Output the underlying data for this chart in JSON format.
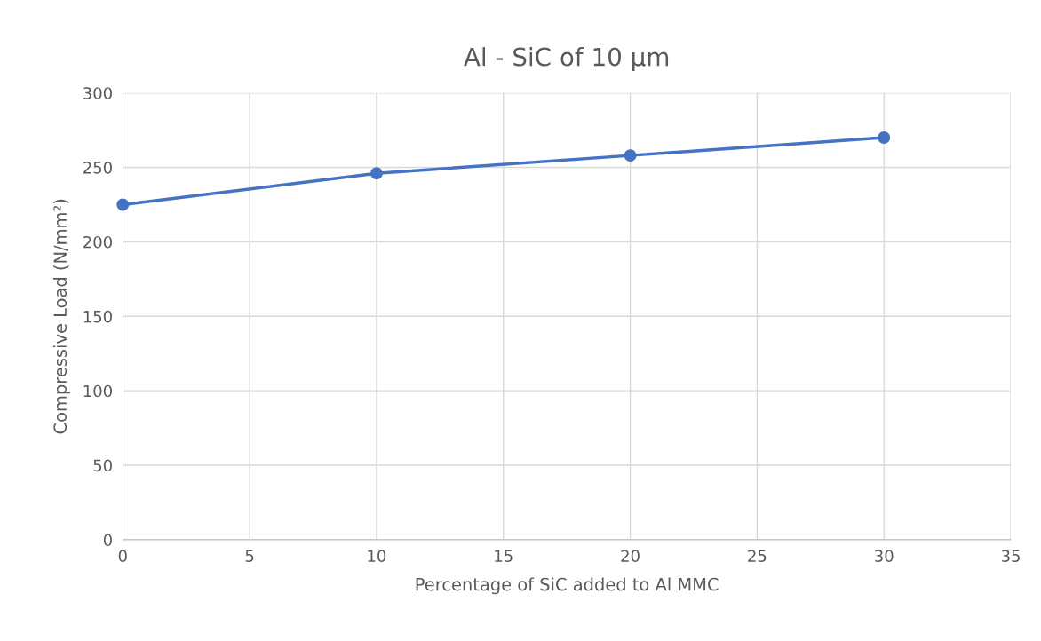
{
  "chart_data": {
    "type": "line",
    "title": "Al - SiC of 10 µm",
    "xlabel": "Percentage of SiC added to Al MMC",
    "ylabel": "Compressive Load (N/mm²)",
    "x": [
      0,
      10,
      20,
      30
    ],
    "series": [
      {
        "color": "#4472c4",
        "values": [
          225,
          246,
          258,
          270
        ]
      }
    ],
    "xlim": [
      0,
      35
    ],
    "xticks": [
      0,
      5,
      10,
      15,
      20,
      25,
      30,
      35
    ],
    "ylim": [
      0,
      300
    ],
    "yticks": [
      0,
      50,
      100,
      150,
      200,
      250,
      300
    ],
    "grid": true,
    "marker": "circle",
    "line_style": "solid",
    "legend": false
  }
}
